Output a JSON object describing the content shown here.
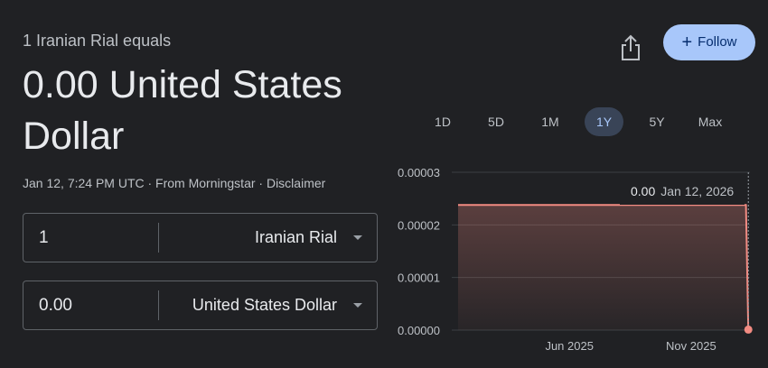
{
  "converter": {
    "equals_label": "1 Iranian Rial equals",
    "result_line1": "0.00 United States",
    "result_line2": "Dollar",
    "meta": "Jan 12, 7:24 PM UTC · From Morningstar · Disclaimer",
    "from_amount": "1",
    "from_currency": "Iranian Rial",
    "to_amount": "0.00",
    "to_currency": "United States Dollar"
  },
  "actions": {
    "share_icon": "share-icon",
    "follow_label": "Follow",
    "follow_icon": "+"
  },
  "ranges": {
    "items": [
      "1D",
      "5D",
      "1M",
      "1Y",
      "5Y",
      "Max"
    ],
    "active": "1Y"
  },
  "tooltip": {
    "value": "0.00",
    "date": "Jan 12, 2026"
  },
  "colors": {
    "background": "#202124",
    "line": "#f28b82",
    "accent": "#a8c7fa"
  },
  "chart_data": {
    "type": "area",
    "y_ticks": [
      "0.00003",
      "0.00002",
      "0.00001",
      "0.00000"
    ],
    "ylim": [
      0,
      3e-05
    ],
    "x_ticks": [
      {
        "label": "Jun 2025",
        "x": "2025-06-01"
      },
      {
        "label": "Nov 2025",
        "x": "2025-11-01"
      }
    ],
    "xlim": [
      "2025-01-12",
      "2026-01-14"
    ],
    "series": [
      {
        "points": [
          {
            "x": "2025-01-12",
            "y": 2.38e-05
          },
          {
            "x": "2025-07-01",
            "y": 2.38e-05
          },
          {
            "x": "2026-01-09",
            "y": 2.38e-05
          },
          {
            "x": "2026-01-12",
            "y": 1e-07
          }
        ]
      }
    ],
    "last_point": {
      "x": "2026-01-12",
      "y": 1e-07
    },
    "grid": true
  }
}
